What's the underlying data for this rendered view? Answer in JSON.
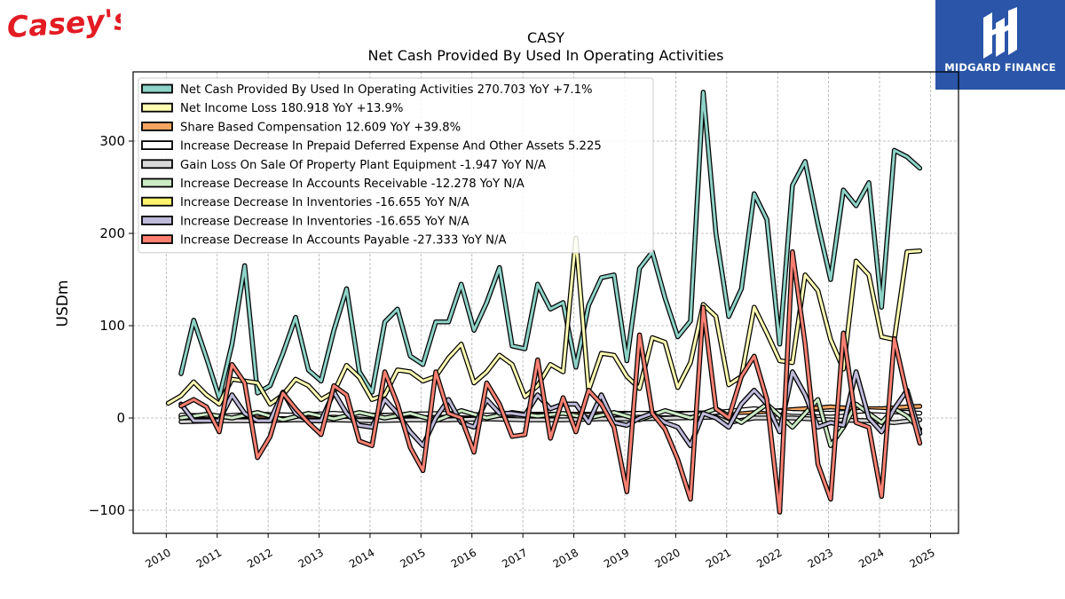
{
  "brand": {
    "left_logo_text": "Casey's",
    "right_logo_text": "MIDGARD FINANCE",
    "colors": {
      "casey_red": "#e31b23",
      "midgard_blue": "#2a55a8"
    }
  },
  "chart_data": {
    "type": "line",
    "title": "CASY",
    "subtitle": "Net Cash Provided By Used In Operating Activities",
    "ylabel": "USDm",
    "xlabel": "",
    "xlim": [
      2009.35,
      2025.55
    ],
    "ylim": [
      -125,
      375
    ],
    "xticks": [
      2010,
      2011,
      2012,
      2013,
      2014,
      2015,
      2016,
      2017,
      2018,
      2019,
      2020,
      2021,
      2022,
      2023,
      2024,
      2025
    ],
    "xtick_labels": [
      "2010",
      "2011",
      "2012",
      "2013",
      "2014",
      "2015",
      "2016",
      "2017",
      "2018",
      "2019",
      "2020",
      "2021",
      "2022",
      "2023",
      "2024",
      "2025"
    ],
    "yticks": [
      -100,
      0,
      100,
      200,
      300
    ],
    "ytick_labels": [
      "−100",
      "0",
      "100",
      "200",
      "300"
    ],
    "grid": true,
    "legend_position": "top-left",
    "series": [
      {
        "name": "Net Cash Provided By Used In Operating Activities",
        "legend_label": "Net Cash Provided By Used In Operating Activities  270.703 YoY +7.1%",
        "color": "#8dd3c7",
        "x": [
          2010.29,
          2010.54,
          2010.79,
          2011.04,
          2011.29,
          2011.54,
          2011.79,
          2012.04,
          2012.29,
          2012.54,
          2012.79,
          2013.04,
          2013.29,
          2013.54,
          2013.79,
          2014.04,
          2014.29,
          2014.54,
          2014.79,
          2015.04,
          2015.29,
          2015.54,
          2015.79,
          2016.04,
          2016.29,
          2016.54,
          2016.79,
          2017.04,
          2017.29,
          2017.54,
          2017.79,
          2018.04,
          2018.29,
          2018.54,
          2018.79,
          2019.04,
          2019.29,
          2019.54,
          2019.79,
          2020.04,
          2020.29,
          2020.54,
          2020.79,
          2021.04,
          2021.29,
          2021.54,
          2021.79,
          2022.04,
          2022.29,
          2022.54,
          2022.79,
          2023.04,
          2023.29,
          2023.54,
          2023.79,
          2024.04,
          2024.29,
          2024.54,
          2024.79
        ],
        "y": [
          48,
          106,
          65,
          22,
          80,
          165,
          27,
          35,
          70,
          109,
          52,
          40,
          95,
          140,
          50,
          28,
          104,
          118,
          67,
          58,
          104,
          104,
          145,
          95,
          125,
          163,
          78,
          75,
          145,
          118,
          125,
          55,
          122,
          152,
          155,
          62,
          162,
          180,
          130,
          88,
          105,
          353,
          200,
          110,
          140,
          243,
          215,
          80,
          252,
          278,
          210,
          150,
          247,
          230,
          255,
          120,
          290,
          283,
          270.703
        ]
      },
      {
        "name": "Net Income Loss",
        "legend_label": "Net Income Loss  180.918 YoY +13.9%",
        "color": "#ffffb3",
        "x": [
          2010.04,
          2010.29,
          2010.54,
          2010.79,
          2011.04,
          2011.29,
          2011.54,
          2011.79,
          2012.04,
          2012.29,
          2012.54,
          2012.79,
          2013.04,
          2013.29,
          2013.54,
          2013.79,
          2014.04,
          2014.29,
          2014.54,
          2014.79,
          2015.04,
          2015.29,
          2015.54,
          2015.79,
          2016.04,
          2016.29,
          2016.54,
          2016.79,
          2017.04,
          2017.29,
          2017.54,
          2017.79,
          2018.04,
          2018.29,
          2018.54,
          2018.79,
          2019.04,
          2019.29,
          2019.54,
          2019.79,
          2020.04,
          2020.29,
          2020.54,
          2020.79,
          2021.04,
          2021.29,
          2021.54,
          2021.79,
          2022.04,
          2022.29,
          2022.54,
          2022.79,
          2023.04,
          2023.29,
          2023.54,
          2023.79,
          2024.04,
          2024.29,
          2024.54,
          2024.79
        ],
        "y": [
          16,
          24,
          39,
          25,
          15,
          42,
          40,
          38,
          15,
          25,
          42,
          35,
          20,
          28,
          57,
          44,
          20,
          25,
          52,
          50,
          40,
          45,
          65,
          80,
          38,
          50,
          68,
          58,
          23,
          35,
          58,
          50,
          195,
          30,
          70,
          68,
          45,
          32,
          87,
          82,
          33,
          60,
          123,
          110,
          36,
          45,
          120,
          92,
          62,
          60,
          155,
          138,
          85,
          53,
          170,
          155,
          88,
          85,
          180,
          180.918
        ]
      },
      {
        "name": "Share Based Compensation",
        "legend_label": "Share Based Compensation  12.609 YoY +39.8%",
        "color": "#f4a460",
        "x": [
          2010.29,
          2010.79,
          2011.29,
          2011.79,
          2012.29,
          2012.79,
          2013.29,
          2013.79,
          2014.29,
          2014.79,
          2015.29,
          2015.79,
          2016.29,
          2016.79,
          2017.29,
          2017.79,
          2018.29,
          2018.79,
          2019.29,
          2019.79,
          2020.29,
          2020.79,
          2021.29,
          2021.79,
          2022.04,
          2022.29,
          2022.54,
          2022.79,
          2023.04,
          2023.29,
          2023.54,
          2023.79,
          2024.04,
          2024.29,
          2024.54,
          2024.79
        ],
        "y": [
          2,
          2,
          2,
          2,
          2,
          2,
          2,
          3,
          3,
          3,
          3,
          3,
          3,
          4,
          4,
          4,
          4,
          5,
          5,
          5,
          5,
          6,
          6,
          7,
          8,
          9,
          10,
          11,
          12,
          11,
          10,
          10,
          10,
          11,
          12,
          12.609
        ]
      },
      {
        "name": "Increase Decrease In Prepaid Deferred Expense And Other Assets",
        "legend_label": "Increase Decrease In Prepaid Deferred Expense And Other Assets  5.225",
        "color": "#ffffff",
        "x": [
          2010.29,
          2011.04,
          2011.79,
          2012.54,
          2013.29,
          2014.04,
          2014.79,
          2015.54,
          2016.29,
          2017.04,
          2017.79,
          2018.54,
          2019.29,
          2020.04,
          2020.79,
          2021.54,
          2022.29,
          2023.04,
          2023.79,
          2024.54,
          2024.79
        ],
        "y": [
          3,
          2,
          4,
          3,
          5,
          2,
          4,
          5,
          3,
          4,
          2,
          3,
          5,
          4,
          6,
          10,
          6,
          5,
          8,
          6,
          5.225
        ]
      },
      {
        "name": "Gain Loss On Sale Of Property Plant Equipment",
        "legend_label": "Gain Loss On Sale Of Property Plant Equipment  -1.947 YoY N/A",
        "color": "#d9d9d9",
        "x": [
          2010.29,
          2011.04,
          2011.79,
          2012.54,
          2013.29,
          2014.04,
          2014.79,
          2015.54,
          2016.29,
          2017.04,
          2017.79,
          2018.54,
          2019.29,
          2020.04,
          2020.79,
          2021.04,
          2021.54,
          2022.29,
          2023.04,
          2023.79,
          2024.29,
          2024.79
        ],
        "y": [
          -4,
          -3,
          -3,
          -2,
          -2,
          -3,
          -2,
          -2,
          -1,
          -2,
          -2,
          -1,
          -1,
          0,
          1,
          -5,
          0,
          0,
          -2,
          -3,
          -5,
          -1.947
        ]
      },
      {
        "name": "Increase Decrease In Accounts Receivable",
        "legend_label": "Increase Decrease In Accounts Receivable  -12.278 YoY N/A",
        "color": "#ccebc5",
        "x": [
          2010.29,
          2010.79,
          2011.29,
          2011.79,
          2012.29,
          2012.79,
          2013.29,
          2013.79,
          2014.29,
          2014.79,
          2015.29,
          2015.79,
          2016.29,
          2016.79,
          2017.29,
          2017.79,
          2018.29,
          2018.79,
          2019.29,
          2019.79,
          2020.29,
          2020.79,
          2021.29,
          2021.79,
          2022.29,
          2022.79,
          2023.04,
          2023.29,
          2023.54,
          2023.79,
          2024.04,
          2024.29,
          2024.54,
          2024.79
        ],
        "y": [
          0,
          4,
          0,
          6,
          -2,
          5,
          -1,
          6,
          0,
          5,
          -3,
          8,
          0,
          6,
          2,
          5,
          0,
          6,
          -2,
          8,
          0,
          10,
          -5,
          15,
          -10,
          20,
          -30,
          -10,
          15,
          5,
          -5,
          10,
          2,
          -12.278
        ]
      },
      {
        "name": "Increase Decrease In Inventories",
        "legend_label": "Increase Decrease In Inventories  -16.655 YoY N/A",
        "color": "#fff56d",
        "x": [
          2010.29,
          2010.54,
          2010.79,
          2011.04,
          2011.29,
          2011.54,
          2011.79,
          2012.04,
          2012.29,
          2012.54,
          2012.79,
          2013.04,
          2013.29,
          2013.54,
          2013.79,
          2014.04,
          2014.29,
          2014.54,
          2014.79,
          2015.04,
          2015.29,
          2015.54,
          2015.79,
          2016.04,
          2016.29,
          2016.54,
          2016.79,
          2017.04,
          2017.29,
          2017.54,
          2017.79,
          2018.04,
          2018.29,
          2018.54,
          2018.79,
          2019.04,
          2019.29,
          2019.54,
          2019.79,
          2020.04,
          2020.29,
          2020.54,
          2020.79,
          2021.04,
          2021.29,
          2021.54,
          2021.79,
          2022.04,
          2022.29,
          2022.54,
          2022.79,
          2023.04,
          2023.29,
          2023.54,
          2023.79,
          2024.04,
          2024.29,
          2024.54,
          2024.79
        ],
        "y": [
          15,
          -3,
          -3,
          -3,
          25,
          5,
          -3,
          -3,
          28,
          5,
          -3,
          -3,
          28,
          5,
          -8,
          -10,
          20,
          5,
          -15,
          -30,
          0,
          20,
          -5,
          -10,
          20,
          5,
          5,
          3,
          25,
          10,
          15,
          15,
          -5,
          25,
          -5,
          -8,
          0,
          5,
          -5,
          -10,
          -30,
          5,
          0,
          -10,
          15,
          30,
          15,
          -15,
          50,
          25,
          -10,
          -5,
          -8,
          50,
          0,
          -15,
          10,
          30,
          -16.655
        ]
      },
      {
        "name": "Increase Decrease In Inventories",
        "legend_label": "Increase Decrease In Inventories  -16.655 YoY N/A",
        "color": "#bebada",
        "x": [
          2010.29,
          2010.54,
          2010.79,
          2011.04,
          2011.29,
          2011.54,
          2011.79,
          2012.04,
          2012.29,
          2012.54,
          2012.79,
          2013.04,
          2013.29,
          2013.54,
          2013.79,
          2014.04,
          2014.29,
          2014.54,
          2014.79,
          2015.04,
          2015.29,
          2015.54,
          2015.79,
          2016.04,
          2016.29,
          2016.54,
          2016.79,
          2017.04,
          2017.29,
          2017.54,
          2017.79,
          2018.04,
          2018.29,
          2018.54,
          2018.79,
          2019.04,
          2019.29,
          2019.54,
          2019.79,
          2020.04,
          2020.29,
          2020.54,
          2020.79,
          2021.04,
          2021.29,
          2021.54,
          2021.79,
          2022.04,
          2022.29,
          2022.54,
          2022.79,
          2023.04,
          2023.29,
          2023.54,
          2023.79,
          2024.04,
          2024.29,
          2024.54,
          2024.79
        ],
        "y": [
          15,
          -3,
          -3,
          -3,
          25,
          5,
          -3,
          -3,
          28,
          5,
          -3,
          -3,
          28,
          5,
          -8,
          -10,
          20,
          5,
          -15,
          -30,
          0,
          20,
          -5,
          -10,
          20,
          5,
          5,
          3,
          25,
          10,
          15,
          15,
          -5,
          25,
          -5,
          -8,
          0,
          5,
          -5,
          -10,
          -30,
          5,
          0,
          -10,
          15,
          30,
          15,
          -15,
          50,
          25,
          -10,
          -5,
          -8,
          50,
          0,
          -15,
          10,
          30,
          -16.655
        ]
      },
      {
        "name": "Increase Decrease In Accounts Payable",
        "legend_label": "Increase Decrease In Accounts Payable  -27.333 YoY N/A",
        "color": "#fb8072",
        "x": [
          2010.29,
          2010.54,
          2010.79,
          2011.04,
          2011.29,
          2011.54,
          2011.79,
          2012.04,
          2012.29,
          2012.54,
          2012.79,
          2013.04,
          2013.29,
          2013.54,
          2013.79,
          2014.04,
          2014.29,
          2014.54,
          2014.79,
          2015.04,
          2015.29,
          2015.54,
          2015.79,
          2016.04,
          2016.29,
          2016.54,
          2016.79,
          2017.04,
          2017.29,
          2017.54,
          2017.79,
          2018.04,
          2018.29,
          2018.54,
          2018.79,
          2019.04,
          2019.29,
          2019.54,
          2019.79,
          2020.04,
          2020.29,
          2020.54,
          2020.79,
          2021.04,
          2021.29,
          2021.54,
          2021.79,
          2022.04,
          2022.29,
          2022.54,
          2022.79,
          2023.04,
          2023.29,
          2023.54,
          2023.79,
          2024.04,
          2024.29,
          2024.54,
          2024.79
        ],
        "y": [
          13,
          20,
          12,
          -15,
          58,
          38,
          -43,
          -20,
          27,
          10,
          -5,
          -18,
          35,
          25,
          -25,
          -30,
          50,
          15,
          -32,
          -57,
          50,
          5,
          0,
          -37,
          38,
          15,
          -20,
          -18,
          63,
          -22,
          22,
          -15,
          30,
          15,
          -10,
          -80,
          90,
          5,
          -12,
          -45,
          -88,
          120,
          10,
          0,
          45,
          67,
          20,
          -102,
          180,
          80,
          -50,
          -88,
          92,
          -5,
          -10,
          -85,
          86,
          25,
          -27.333
        ]
      }
    ]
  }
}
